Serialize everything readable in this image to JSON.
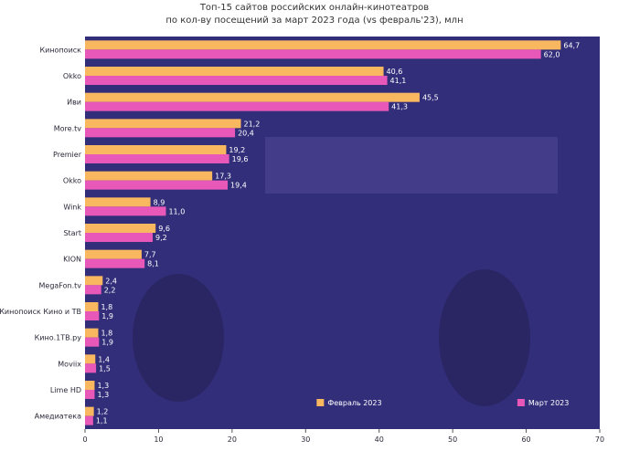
{
  "chart_data": {
    "type": "bar",
    "orientation": "horizontal",
    "title": "Топ-15 сайтов российских онлайн-кинотеатров",
    "subtitle": "по кол-ву посещений за март 2023 года (vs февраль'23), млн",
    "categories": [
      "Кинопоиск",
      "Okko",
      "Иви",
      "More.tv",
      "Premier",
      "Okko",
      "Wink",
      "Start",
      "KION",
      "MegaFon.tv",
      "Кинопоиск Кино и ТВ",
      "Кино.1ТВ.ру",
      "Moviix",
      "Lime HD",
      "Амедиатека"
    ],
    "series": [
      {
        "name": "Февраль 2023",
        "color": "#F9B760",
        "values": [
          64.7,
          40.6,
          45.5,
          21.2,
          19.2,
          17.3,
          8.9,
          9.6,
          7.7,
          2.4,
          1.8,
          1.8,
          1.4,
          1.3,
          1.2
        ]
      },
      {
        "name": "Март 2023",
        "color": "#E858B8",
        "values": [
          62.0,
          41.1,
          41.3,
          20.4,
          19.6,
          19.4,
          11.0,
          9.2,
          8.1,
          2.2,
          1.9,
          1.9,
          1.5,
          1.3,
          1.1
        ]
      }
    ],
    "value_labels": [
      [
        "64,7",
        "40,6",
        "45,5",
        "21,2",
        "19,2",
        "17,3",
        "8,9",
        "9,6",
        "7,7",
        "2,4",
        "1,8",
        "1,8",
        "1,4",
        "1,3",
        "1,2"
      ],
      [
        "62,0",
        "41,1",
        "41,3",
        "20,4",
        "19,6",
        "19,4",
        "11,0",
        "9,2",
        "8,1",
        "2,2",
        "1,9",
        "1,9",
        "1,5",
        "1,3",
        "1,1"
      ]
    ],
    "xlim": [
      0,
      70
    ],
    "xticks": [
      0,
      10,
      20,
      30,
      40,
      50,
      60,
      70
    ],
    "legend": [
      "Февраль 2023",
      "Март 2023"
    ],
    "legend_position": "bottom-right",
    "plot_background": "#332E7A",
    "label_color": "#ffffff"
  }
}
